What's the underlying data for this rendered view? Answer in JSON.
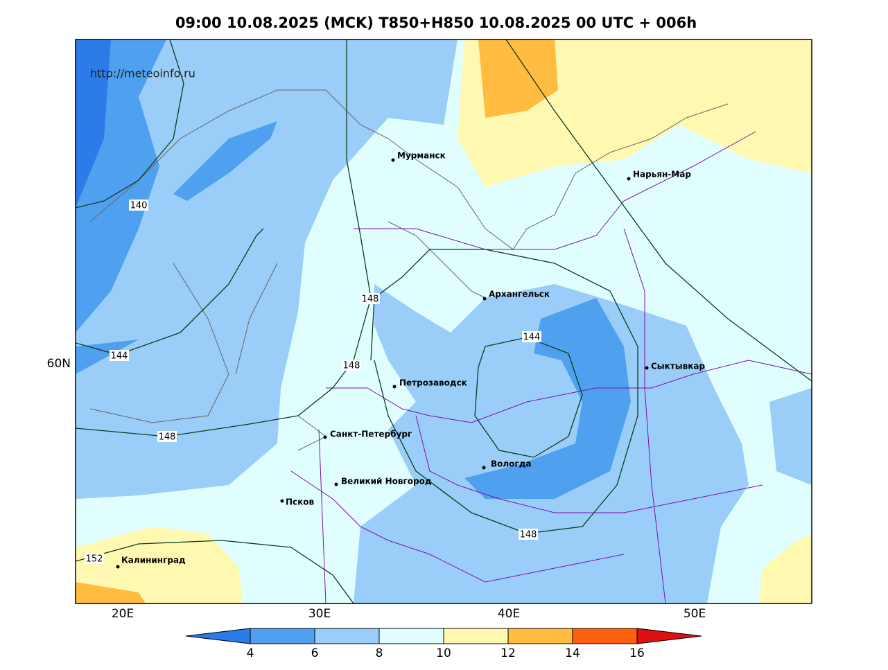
{
  "title": "09:00 10.08.2025 (MCK) T850+H850 10.08.2025 00 UTC + 006h",
  "url": "http://meteoinfo.ru",
  "axis": {
    "x_labels": [
      "20E",
      "30E",
      "40E",
      "50E"
    ],
    "y_labels": [
      "60N"
    ]
  },
  "cities": [
    "Мурманск",
    "Нарьян-Мар",
    "Архангельск",
    "Сыктывкар",
    "Петрозаводск",
    "Санкт-Петербург",
    "Вологда",
    "Великий Новгород",
    "Псков",
    "Калининград"
  ],
  "contour_labels": [
    140,
    144,
    148,
    148,
    148,
    144,
    148,
    152
  ],
  "colorbar": {
    "ticks": [
      4,
      6,
      8,
      10,
      12,
      14,
      16
    ],
    "colors": [
      "#2b7be8",
      "#50a0f0",
      "#9acdf8",
      "#e0fefe",
      "#fff8b0",
      "#ffbc40",
      "#ff6010",
      "#e01010"
    ]
  }
}
